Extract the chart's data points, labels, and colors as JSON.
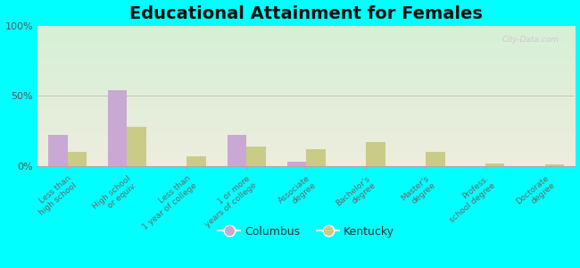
{
  "title": "Educational Attainment for Females",
  "categories": [
    "Less than\nhigh school",
    "High school\nor equiv.",
    "Less than\n1 year of college",
    "1 or more\nyears of college",
    "Associate\ndegree",
    "Bachelor's\ndegree",
    "Master's\ndegree",
    "Profess.\nschool degree",
    "Doctorate\ndegree"
  ],
  "columbus_values": [
    22,
    54,
    0,
    22,
    3,
    0,
    0,
    0,
    0
  ],
  "kentucky_values": [
    10,
    28,
    7,
    14,
    12,
    17,
    10,
    2,
    1
  ],
  "columbus_color": "#c9a8d4",
  "kentucky_color": "#c8cc87",
  "bg_color_top": "#d6efd6",
  "bg_color_bottom": "#eeeedd",
  "ylim": [
    0,
    100
  ],
  "yticks": [
    0,
    50,
    100
  ],
  "ytick_labels": [
    "0%",
    "50%",
    "100%"
  ],
  "bar_width": 0.32,
  "legend_labels": [
    "Columbus",
    "Kentucky"
  ],
  "outer_bg": "#00ffff",
  "title_fontsize": 14,
  "tick_fontsize": 6.5,
  "watermark": "City-Data.com"
}
